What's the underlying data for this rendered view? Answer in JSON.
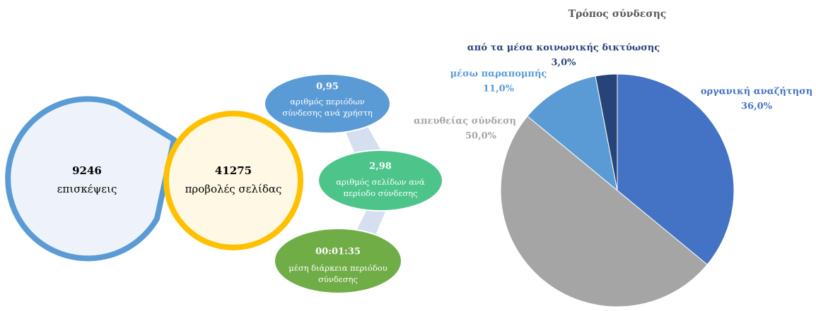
{
  "infographic": {
    "visits": {
      "value": "9246",
      "label": "επισκέψεις"
    },
    "pageviews": {
      "value": "41275",
      "label": "προβολές σελίδας"
    },
    "sessions_per_user": {
      "value": "0,95",
      "label": [
        "αριθμός περιόδων",
        "σύνδεσης ανά χρήστη"
      ]
    },
    "pages_per_session": {
      "value": "2,98",
      "label": [
        "αριθμός σελίδων ανά",
        "περίοδο σύνδεσης"
      ]
    },
    "avg_session_duration": {
      "value": "00:01:35",
      "label": [
        "μέση διάρκεια περιόδου",
        "σύνδεσης"
      ]
    }
  },
  "chart_data": {
    "type": "pie",
    "title": "Τρόπος σύνδεσης",
    "categories": [
      "οργανική αναζήτηση",
      "απευθείας σύνδεση",
      "μέσω παραπομπής",
      "από τα μέσα κοινωνικής δικτύωσης"
    ],
    "values": [
      36,
      50,
      11,
      3
    ],
    "value_labels": [
      "36,0%",
      "50,0%",
      "11,0%",
      "3,0%"
    ],
    "colors": [
      "#4472c4",
      "#a5a5a5",
      "#5b9bd5",
      "#264478"
    ]
  }
}
